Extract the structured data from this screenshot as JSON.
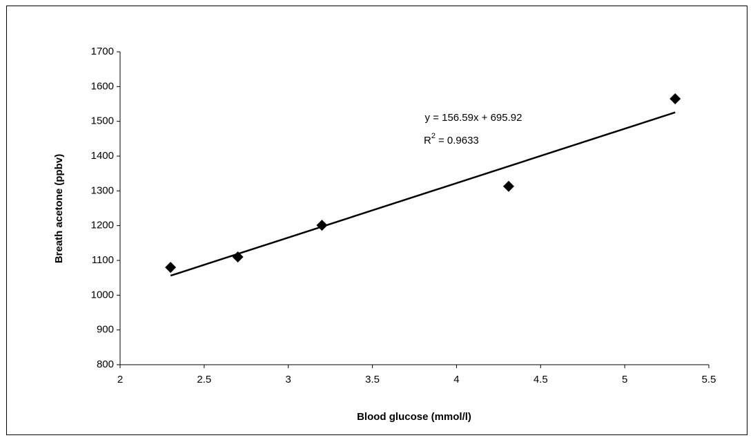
{
  "chart_data": {
    "type": "scatter",
    "x_label": "Blood glucose (mmol/l)",
    "y_label": "Breath acetone (ppbv)",
    "x": [
      2.3,
      2.7,
      3.2,
      4.31,
      5.3
    ],
    "series": [
      {
        "color": "#000000",
        "values": [
          1080,
          1110,
          1201,
          1313,
          1565
        ]
      }
    ],
    "xlim": [
      2,
      5.5
    ],
    "xticks": [
      2,
      2.5,
      3,
      3.5,
      4,
      4.5,
      5,
      5.5
    ],
    "ylim": [
      800,
      1700
    ],
    "yticks": [
      800,
      900,
      1000,
      1100,
      1200,
      1300,
      1400,
      1500,
      1600,
      1700
    ],
    "grid": false,
    "trendline": {
      "slope": 156.59,
      "intercept": 695.92,
      "color": "#000000",
      "equation": "y = 156.59x + 695.92",
      "r_squared": {
        "symbol": "R",
        "exponent": "2",
        "text": "= 0.9633"
      }
    }
  }
}
